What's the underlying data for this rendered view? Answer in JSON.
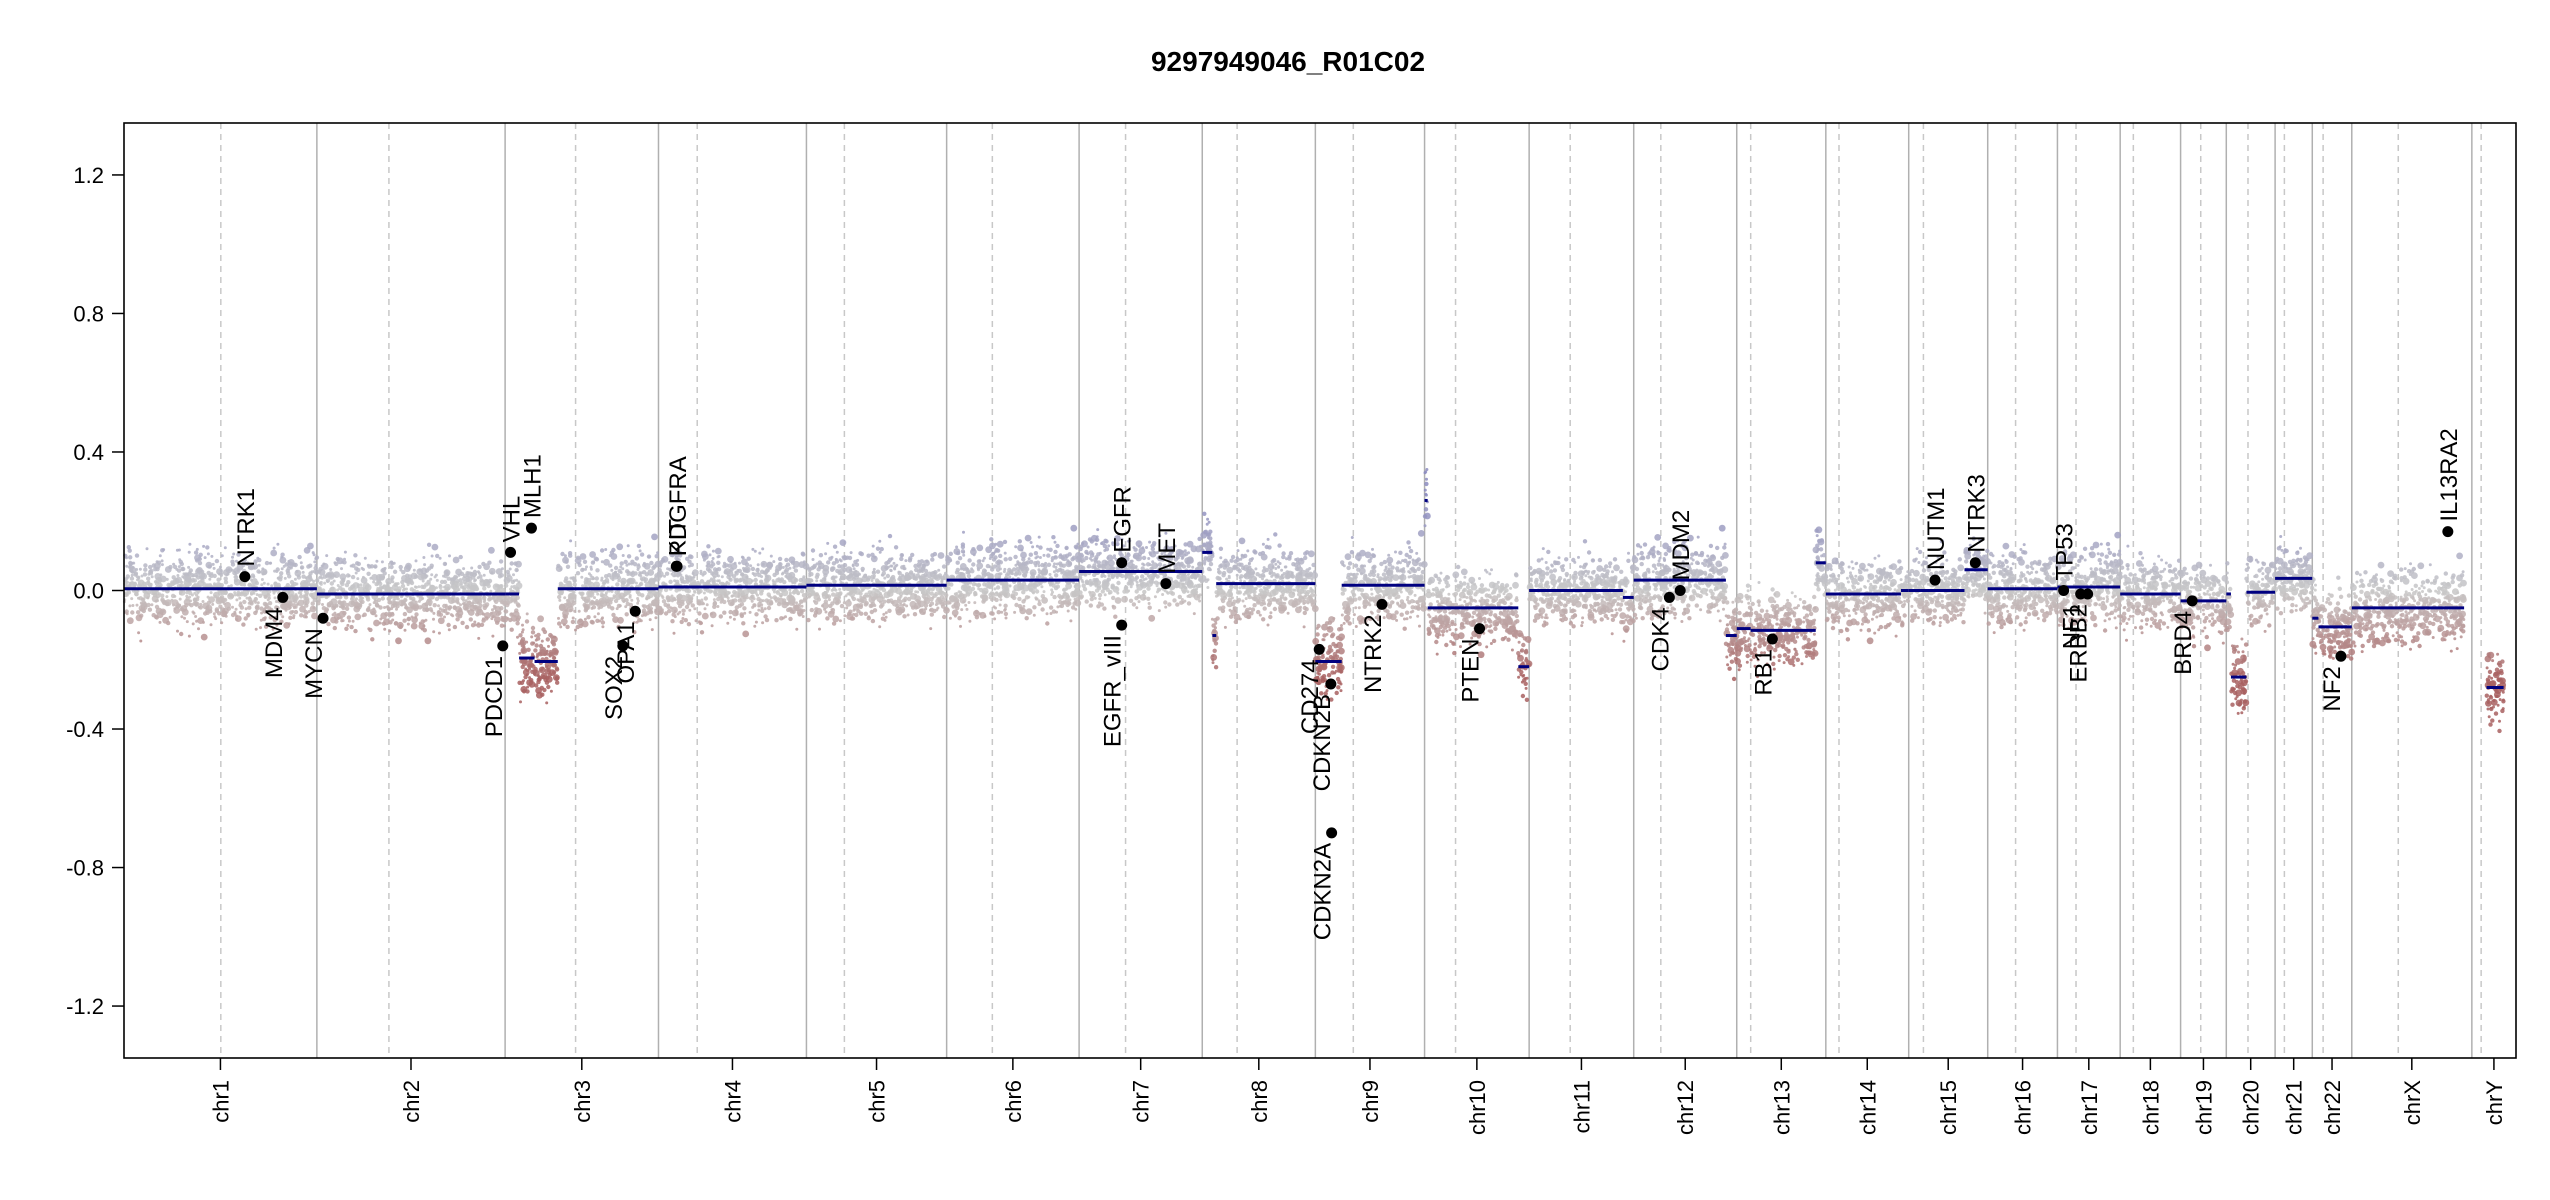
{
  "chart_data": {
    "type": "scatter",
    "title": "9297949046_R01C02",
    "xlabel": "",
    "ylabel": "",
    "ylim": [
      -1.35,
      1.35
    ],
    "yticks": [
      "1.2",
      "0.8",
      "0.4",
      "0.0",
      "-0.4",
      "-0.8",
      "-1.2"
    ],
    "ytick_values": [
      1.2,
      0.8,
      0.4,
      0.0,
      -0.4,
      -0.8,
      -1.2
    ],
    "colors": {
      "gain": "#8c8cc0",
      "loss": "#a86060",
      "neutral": "#c8c8c8",
      "segment": "#000080",
      "marker": "#000000",
      "divider": "#b0b0b0",
      "centromere": "#c8c8c8"
    },
    "chromosomes": [
      {
        "name": "chr1",
        "start": 0,
        "end": 249,
        "centromere": 125
      },
      {
        "name": "chr2",
        "start": 249,
        "end": 492,
        "centromere": 342
      },
      {
        "name": "chr3",
        "start": 492,
        "end": 690,
        "centromere": 583
      },
      {
        "name": "chr4",
        "start": 690,
        "end": 881,
        "centromere": 740
      },
      {
        "name": "chr5",
        "start": 881,
        "end": 1062,
        "centromere": 930
      },
      {
        "name": "chr6",
        "start": 1062,
        "end": 1233,
        "centromere": 1121
      },
      {
        "name": "chr7",
        "start": 1233,
        "end": 1392,
        "centromere": 1293
      },
      {
        "name": "chr8",
        "start": 1392,
        "end": 1538,
        "centromere": 1437
      },
      {
        "name": "chr9",
        "start": 1538,
        "end": 1679,
        "centromere": 1587
      },
      {
        "name": "chr10",
        "start": 1679,
        "end": 1814,
        "centromere": 1719
      },
      {
        "name": "chr11",
        "start": 1814,
        "end": 1949,
        "centromere": 1867
      },
      {
        "name": "chr12",
        "start": 1949,
        "end": 2082,
        "centromere": 1984
      },
      {
        "name": "chr13",
        "start": 2082,
        "end": 2197,
        "centromere": 2100
      },
      {
        "name": "chr14",
        "start": 2197,
        "end": 2304,
        "centromere": 2214
      },
      {
        "name": "chr15",
        "start": 2304,
        "end": 2406,
        "centromere": 2323
      },
      {
        "name": "chr16",
        "start": 2406,
        "end": 2496,
        "centromere": 2442
      },
      {
        "name": "chr17",
        "start": 2496,
        "end": 2577,
        "centromere": 2520
      },
      {
        "name": "chr18",
        "start": 2577,
        "end": 2655,
        "centromere": 2594
      },
      {
        "name": "chr19",
        "start": 2655,
        "end": 2714,
        "centromere": 2681
      },
      {
        "name": "chr20",
        "start": 2714,
        "end": 2777,
        "centromere": 2742
      },
      {
        "name": "chr21",
        "start": 2777,
        "end": 2825,
        "centromere": 2789
      },
      {
        "name": "chr22",
        "start": 2825,
        "end": 2876,
        "centromere": 2839
      },
      {
        "name": "chrX",
        "start": 2876,
        "end": 3031,
        "centromere": 2936
      },
      {
        "name": "chrY",
        "start": 3031,
        "end": 3088,
        "centromere": 3043
      }
    ],
    "segments": [
      {
        "x0": 0,
        "x1": 249,
        "y": 0.005
      },
      {
        "x0": 249,
        "x1": 492,
        "y": -0.01
      },
      {
        "x0": 492,
        "x1": 510,
        "y": -0.01
      },
      {
        "x0": 510,
        "x1": 530,
        "y": -0.195
      },
      {
        "x0": 530,
        "x1": 560,
        "y": -0.205
      },
      {
        "x0": 560,
        "x1": 690,
        "y": 0.005
      },
      {
        "x0": 690,
        "x1": 881,
        "y": 0.01
      },
      {
        "x0": 881,
        "x1": 1062,
        "y": 0.015
      },
      {
        "x0": 1062,
        "x1": 1233,
        "y": 0.03
      },
      {
        "x0": 1233,
        "x1": 1392,
        "y": 0.055
      },
      {
        "x0": 1392,
        "x1": 1405,
        "y": 0.11
      },
      {
        "x0": 1405,
        "x1": 1410,
        "y": -0.13
      },
      {
        "x0": 1410,
        "x1": 1538,
        "y": 0.02
      },
      {
        "x0": 1538,
        "x1": 1572,
        "y": -0.205
      },
      {
        "x0": 1572,
        "x1": 1679,
        "y": 0.015
      },
      {
        "x0": 1679,
        "x1": 1683,
        "y": 0.26
      },
      {
        "x0": 1683,
        "x1": 1800,
        "y": -0.05
      },
      {
        "x0": 1800,
        "x1": 1814,
        "y": -0.22
      },
      {
        "x0": 1814,
        "x1": 1935,
        "y": 0.0
      },
      {
        "x0": 1935,
        "x1": 1949,
        "y": -0.02
      },
      {
        "x0": 1949,
        "x1": 2068,
        "y": 0.03
      },
      {
        "x0": 2068,
        "x1": 2082,
        "y": -0.13
      },
      {
        "x0": 2082,
        "x1": 2100,
        "y": -0.11
      },
      {
        "x0": 2100,
        "x1": 2184,
        "y": -0.115
      },
      {
        "x0": 2184,
        "x1": 2197,
        "y": 0.08
      },
      {
        "x0": 2197,
        "x1": 2294,
        "y": -0.01
      },
      {
        "x0": 2294,
        "x1": 2304,
        "y": 0.0
      },
      {
        "x0": 2304,
        "x1": 2376,
        "y": 0.0
      },
      {
        "x0": 2376,
        "x1": 2406,
        "y": 0.06
      },
      {
        "x0": 2406,
        "x1": 2496,
        "y": 0.005
      },
      {
        "x0": 2496,
        "x1": 2577,
        "y": 0.01
      },
      {
        "x0": 2577,
        "x1": 2655,
        "y": -0.01
      },
      {
        "x0": 2655,
        "x1": 2714,
        "y": -0.03
      },
      {
        "x0": 2714,
        "x1": 2720,
        "y": -0.01
      },
      {
        "x0": 2720,
        "x1": 2740,
        "y": -0.25
      },
      {
        "x0": 2740,
        "x1": 2777,
        "y": -0.005
      },
      {
        "x0": 2777,
        "x1": 2825,
        "y": 0.035
      },
      {
        "x0": 2825,
        "x1": 2833,
        "y": -0.08
      },
      {
        "x0": 2833,
        "x1": 2876,
        "y": -0.105
      },
      {
        "x0": 2876,
        "x1": 3021,
        "y": -0.05
      },
      {
        "x0": 3050,
        "x1": 3072,
        "y": -0.28
      }
    ],
    "genes": [
      {
        "name": "NTRK1",
        "x": 156,
        "y": 0.04,
        "label": "above"
      },
      {
        "name": "MDM4",
        "x": 205,
        "y": -0.02,
        "label": "below"
      },
      {
        "name": "MYCN",
        "x": 257,
        "y": -0.08,
        "label": "below"
      },
      {
        "name": "PDCD1",
        "x": 489,
        "y": -0.16,
        "label": "below"
      },
      {
        "name": "VHL",
        "x": 499,
        "y": 0.11,
        "label": "above"
      },
      {
        "name": "MLH1",
        "x": 526,
        "y": 0.18,
        "label": "above"
      },
      {
        "name": "SOX2",
        "x": 644,
        "y": -0.16,
        "label": "below"
      },
      {
        "name": "OPA1",
        "x": 660,
        "y": -0.06,
        "label": "below"
      },
      {
        "name": "KIT",
        "x": 713,
        "y": 0.07,
        "label": "above"
      },
      {
        "name": "PDGFRA",
        "x": 714,
        "y": 0.07,
        "label": "above"
      },
      {
        "name": "EGFR",
        "x": 1288,
        "y": 0.08,
        "label": "above"
      },
      {
        "name": "EGFR_vIII",
        "x": 1288,
        "y": -0.1,
        "label": "below"
      },
      {
        "name": "MET",
        "x": 1345,
        "y": 0.02,
        "label": "above"
      },
      {
        "name": "CD274",
        "x": 1543,
        "y": -0.17,
        "label": "below"
      },
      {
        "name": "CDKN2B",
        "x": 1558,
        "y": -0.27,
        "label": "below"
      },
      {
        "name": "CDKN2A",
        "x": 1559,
        "y": -0.7,
        "label": "below"
      },
      {
        "name": "NTRK2",
        "x": 1624,
        "y": -0.04,
        "label": "below"
      },
      {
        "name": "PTEN",
        "x": 1750,
        "y": -0.11,
        "label": "below"
      },
      {
        "name": "CDK4",
        "x": 1995,
        "y": -0.02,
        "label": "below"
      },
      {
        "name": "MDM2",
        "x": 2009,
        "y": 0.0,
        "label": "above"
      },
      {
        "name": "RB1",
        "x": 2128,
        "y": -0.14,
        "label": "below"
      },
      {
        "name": "NUTM1",
        "x": 2338,
        "y": 0.03,
        "label": "above"
      },
      {
        "name": "NTRK3",
        "x": 2390,
        "y": 0.08,
        "label": "above"
      },
      {
        "name": "TP53",
        "x": 2504,
        "y": 0.0,
        "label": "above"
      },
      {
        "name": "NF1",
        "x": 2526,
        "y": -0.01,
        "label": "below"
      },
      {
        "name": "ERBB2",
        "x": 2535,
        "y": -0.01,
        "label": "below"
      },
      {
        "name": "BRD4",
        "x": 2670,
        "y": -0.03,
        "label": "below"
      },
      {
        "name": "NF2",
        "x": 2862,
        "y": -0.19,
        "label": "below"
      },
      {
        "name": "IL13RA2",
        "x": 3000,
        "y": 0.17,
        "label": "above"
      }
    ]
  }
}
